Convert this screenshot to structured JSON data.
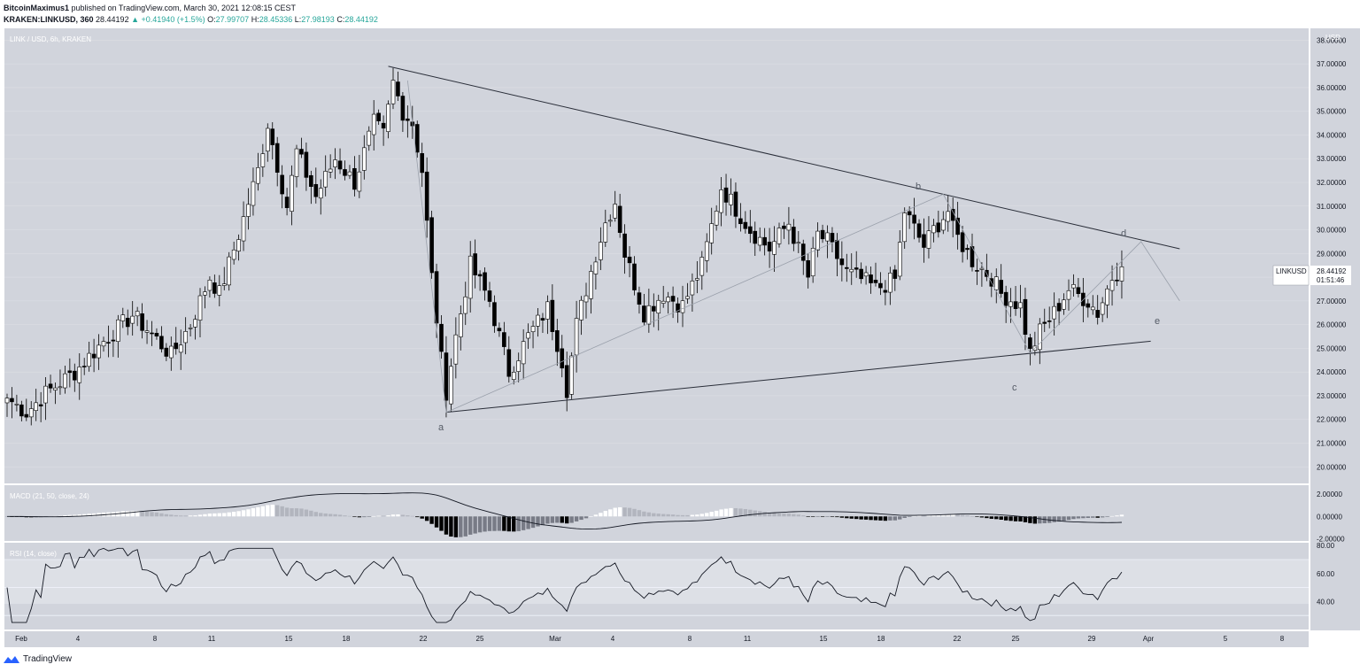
{
  "header": {
    "author": "BitcoinMaximus1",
    "published": "published on TradingView.com, March 30, 2021 12:08:15 CEST",
    "symbol": "KRAKEN:LINKUSD, 360",
    "last": "28.44192",
    "change": "+0.41940 (+1.5%)",
    "o_label": "O:",
    "o": "27.99707",
    "h_label": "H:",
    "h": "28.45336",
    "l_label": "L:",
    "l": "27.98193",
    "c_label": "C:",
    "c": "28.44192"
  },
  "pane_titles": {
    "price": "LINK / USD, 6h, KRAKEN",
    "macd": "MACD (21, 50, close, 24)",
    "rsi": "RSI (14, close)"
  },
  "currency": "USD",
  "price_tag": {
    "symbol": "LINKUSD",
    "value": "28.44192",
    "countdown": "01:51:46"
  },
  "wave_labels": [
    "a",
    "b",
    "c",
    "d",
    "e"
  ],
  "footer": {
    "brand": "TradingView"
  },
  "colors": {
    "up": "#ffffff",
    "down": "#000000",
    "background": "#d1d4dc",
    "accent": "#26a69a"
  },
  "chart_data": [
    {
      "type": "candlestick",
      "title": "LINK / USD, 6h, KRAKEN",
      "ylim": [
        19.3,
        38.5
      ],
      "y_ticks": [
        "20.00000",
        "21.00000",
        "22.00000",
        "23.00000",
        "24.00000",
        "25.00000",
        "26.00000",
        "27.00000",
        "28.00000",
        "29.00000",
        "30.00000",
        "31.00000",
        "32.00000",
        "33.00000",
        "34.00000",
        "35.00000",
        "36.00000",
        "37.00000",
        "38.00000"
      ],
      "x_ticks": [
        "Feb",
        "4",
        "8",
        "11",
        "15",
        "18",
        "22",
        "25",
        "Mar",
        "4",
        "8",
        "11",
        "15",
        "18",
        "22",
        "25",
        "29",
        "Apr",
        "5",
        "8"
      ],
      "anchors": [
        [
          0,
          22.9
        ],
        [
          4,
          22.3
        ],
        [
          8,
          23.1
        ],
        [
          14,
          24.0
        ],
        [
          20,
          25.3
        ],
        [
          26,
          26.4
        ],
        [
          30,
          25.6
        ],
        [
          34,
          24.7
        ],
        [
          38,
          26.0
        ],
        [
          42,
          28.0
        ],
        [
          44,
          27.3
        ],
        [
          48,
          29.8
        ],
        [
          52,
          32.5
        ],
        [
          54,
          34.5
        ],
        [
          58,
          31.0
        ],
        [
          60,
          33.3
        ],
        [
          64,
          31.4
        ],
        [
          68,
          33.0
        ],
        [
          72,
          32.0
        ],
        [
          76,
          34.5
        ],
        [
          78,
          34.0
        ],
        [
          80,
          36.2
        ],
        [
          82,
          35.0
        ],
        [
          84,
          34.5
        ],
        [
          86,
          32.5
        ],
        [
          88,
          28.0
        ],
        [
          90,
          24.5
        ],
        [
          91,
          23.2
        ],
        [
          93,
          25.5
        ],
        [
          96,
          28.5
        ],
        [
          100,
          27.0
        ],
        [
          104,
          24.0
        ],
        [
          108,
          25.5
        ],
        [
          112,
          26.7
        ],
        [
          115,
          24.5
        ],
        [
          116,
          23.3
        ],
        [
          118,
          26.0
        ],
        [
          122,
          29.0
        ],
        [
          124,
          30.3
        ],
        [
          126,
          31.2
        ],
        [
          128,
          29.0
        ],
        [
          132,
          26.5
        ],
        [
          136,
          27.3
        ],
        [
          140,
          26.8
        ],
        [
          144,
          28.5
        ],
        [
          148,
          31.8
        ],
        [
          150,
          31.2
        ],
        [
          154,
          30.0
        ],
        [
          158,
          29.2
        ],
        [
          162,
          30.3
        ],
        [
          166,
          28.0
        ],
        [
          168,
          29.8
        ],
        [
          170,
          29.5
        ],
        [
          174,
          28.2
        ],
        [
          178,
          27.8
        ],
        [
          180,
          27.5
        ],
        [
          184,
          27.9
        ],
        [
          186,
          30.8
        ],
        [
          190,
          29.3
        ],
        [
          192,
          30.0
        ],
        [
          195,
          30.8
        ],
        [
          196,
          30.0
        ],
        [
          200,
          28.7
        ],
        [
          204,
          28.0
        ],
        [
          206,
          27.3
        ],
        [
          210,
          26.8
        ],
        [
          212,
          24.8
        ],
        [
          214,
          25.7
        ],
        [
          217,
          26.5
        ],
        [
          220,
          27.5
        ],
        [
          224,
          27.0
        ],
        [
          226,
          26.5
        ],
        [
          229,
          28.0
        ],
        [
          231,
          28.44
        ]
      ],
      "last_close": 28.44192,
      "trendlines": {
        "upper": [
          [
            79,
            36.9
          ],
          [
            243,
            29.2
          ]
        ],
        "lower": [
          [
            91,
            22.3
          ],
          [
            237,
            25.3
          ]
        ]
      },
      "wave_points": [
        [
          91,
          22.3
        ],
        [
          194,
          31.5
        ],
        [
          212,
          24.8
        ],
        [
          235,
          29.5
        ],
        [
          243,
          27.0
        ]
      ]
    },
    {
      "type": "bar",
      "title": "MACD (21, 50, close, 24)",
      "ylim": [
        -2.2,
        2.8
      ],
      "y_ticks": [
        "2.00000",
        "0.00000",
        "-2.00000"
      ]
    },
    {
      "type": "line",
      "title": "RSI (14, close)",
      "ylim": [
        20,
        82
      ],
      "y_ticks": [
        "80.00",
        "60.00",
        "40.00"
      ],
      "bands": [
        30,
        50,
        70
      ]
    }
  ]
}
